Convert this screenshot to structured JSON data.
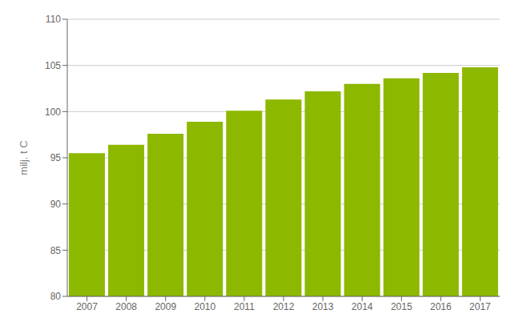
{
  "chart_data": {
    "type": "bar",
    "categories": [
      "2007",
      "2008",
      "2009",
      "2010",
      "2011",
      "2012",
      "2013",
      "2014",
      "2015",
      "2016",
      "2017"
    ],
    "values": [
      95.5,
      96.4,
      97.6,
      98.9,
      100.1,
      101.3,
      102.2,
      103.0,
      103.6,
      104.2,
      104.8
    ],
    "color": "#8db800",
    "ylabel": "milj. t C",
    "ylim": [
      80,
      110
    ],
    "yticks": [
      80,
      85,
      90,
      95,
      100,
      105,
      110
    ],
    "grid": true
  }
}
